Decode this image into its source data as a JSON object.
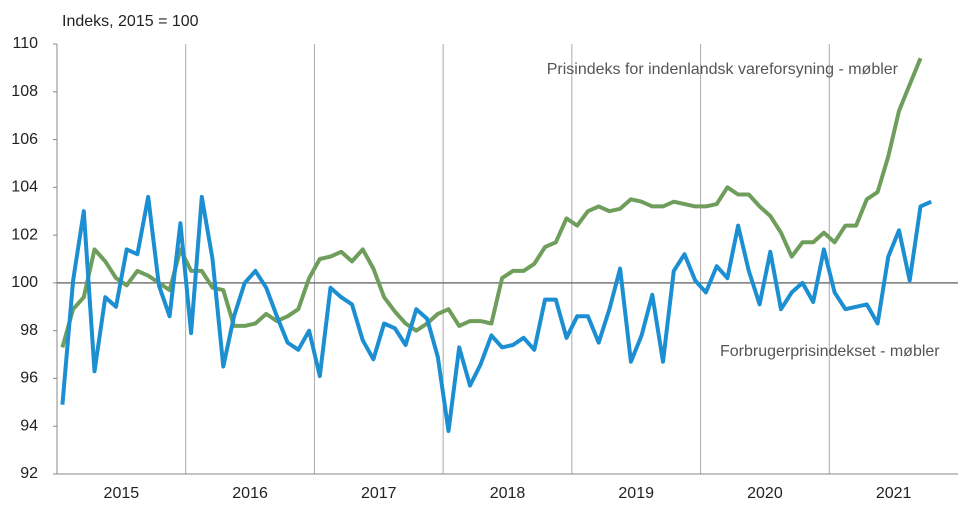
{
  "chart_data": {
    "type": "line",
    "subtitle": "Indeks, 2015 = 100",
    "categories": [
      null,
      null,
      null,
      null,
      null,
      null,
      "2015",
      null,
      null,
      null,
      null,
      null,
      null,
      null,
      null,
      null,
      null,
      null,
      "2016",
      null,
      null,
      null,
      null,
      null,
      null,
      null,
      null,
      null,
      null,
      null,
      "2017",
      null,
      null,
      null,
      null,
      null,
      null,
      null,
      null,
      null,
      null,
      null,
      "2018",
      null,
      null,
      null,
      null,
      null,
      null,
      null,
      null,
      null,
      null,
      null,
      "2019",
      null,
      null,
      null,
      null,
      null,
      null,
      null,
      null,
      null,
      null,
      null,
      "2020",
      null,
      null,
      null,
      null,
      null,
      null,
      null,
      null,
      null,
      null,
      null,
      "2021",
      null,
      null,
      null
    ],
    "series": [
      {
        "name": "Prisindeks for indenlandsk vareforsyning - møbler",
        "color": "#6f9e5c",
        "values": [
          97.3,
          98.9,
          99.4,
          101.4,
          100.9,
          100.2,
          99.9,
          100.5,
          100.3,
          100.0,
          99.7,
          101.4,
          100.5,
          100.5,
          99.8,
          99.7,
          98.2,
          98.2,
          98.3,
          98.7,
          98.4,
          98.6,
          98.9,
          100.2,
          101.0,
          101.1,
          101.3,
          100.9,
          101.4,
          100.6,
          99.4,
          98.8,
          98.3,
          98.0,
          98.3,
          98.7,
          98.9,
          98.2,
          98.4,
          98.4,
          98.3,
          100.2,
          100.5,
          100.5,
          100.8,
          101.5,
          101.7,
          102.7,
          102.4,
          103.0,
          103.2,
          103.0,
          103.1,
          103.5,
          103.4,
          103.2,
          103.2,
          103.4,
          103.3,
          103.2,
          103.2,
          103.3,
          104.0,
          103.7,
          103.7,
          103.2,
          102.8,
          102.1,
          101.1,
          101.7,
          101.7,
          102.1,
          101.7,
          102.4,
          102.4,
          103.5,
          103.8,
          105.3,
          107.2,
          108.3,
          109.4,
          null
        ]
      },
      {
        "name": "Forbrugerprisindekset - møbler",
        "color": "#1b8fd2",
        "values": [
          94.9,
          100.1,
          103.0,
          96.3,
          99.4,
          99.0,
          101.4,
          101.2,
          103.6,
          99.9,
          98.6,
          102.5,
          97.9,
          103.6,
          101.0,
          96.5,
          98.6,
          100.0,
          100.5,
          99.8,
          98.6,
          97.5,
          97.2,
          98.0,
          96.1,
          99.8,
          99.4,
          99.1,
          97.6,
          96.8,
          98.3,
          98.1,
          97.4,
          98.9,
          98.5,
          96.9,
          93.8,
          97.3,
          95.7,
          96.6,
          97.8,
          97.3,
          97.4,
          97.7,
          97.2,
          99.3,
          99.3,
          97.7,
          98.6,
          98.6,
          97.5,
          98.9,
          100.6,
          96.7,
          97.8,
          99.5,
          96.7,
          100.5,
          101.2,
          100.1,
          99.6,
          100.7,
          100.2,
          102.4,
          100.5,
          99.1,
          101.3,
          98.9,
          99.6,
          100.0,
          99.2,
          101.4,
          99.6,
          98.9,
          99.0,
          99.1,
          98.3,
          101.1,
          102.2,
          100.1,
          103.2,
          103.4
        ]
      }
    ],
    "ylim": [
      92,
      110
    ],
    "yticks": [
      92,
      94,
      96,
      98,
      100,
      102,
      104,
      106,
      108,
      110
    ]
  }
}
